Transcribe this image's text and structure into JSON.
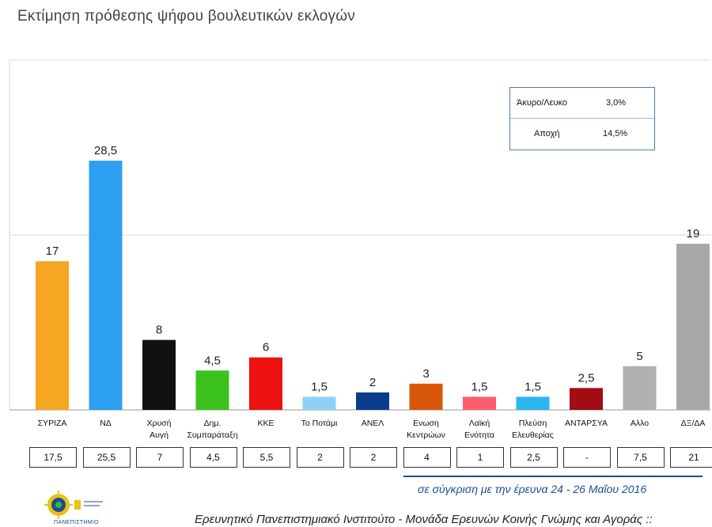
{
  "title": "Εκτίμηση πρόθεσης ψήφου βουλευτικών εκλογών",
  "legend": [
    {
      "label": "Άκυρο/Λευκο",
      "value": "3,0%"
    },
    {
      "label": "Αποχή",
      "value": "14,5%"
    }
  ],
  "chart_data": {
    "type": "bar",
    "categories": [
      [
        "ΣΥΡΙΖΑ"
      ],
      [
        "ΝΔ"
      ],
      [
        "Χρυσή",
        "Αυγή"
      ],
      [
        "Δημ.",
        "Συμπαράταξη"
      ],
      [
        "ΚΚΕ"
      ],
      [
        "Το Ποτάμι"
      ],
      [
        "ΑΝΕΛ"
      ],
      [
        "Ενωση",
        "Κεντρώων"
      ],
      [
        "Λαϊκή",
        "Ενότητα"
      ],
      [
        "Πλεύση",
        "Ελευθερίας"
      ],
      [
        "ΑΝΤΑΡΣΥΑ"
      ],
      [
        "Αλλο"
      ],
      [
        "ΔΞ/ΔΑ"
      ]
    ],
    "values": [
      17,
      28.5,
      8,
      4.5,
      6,
      1.5,
      2,
      3,
      1.5,
      1.5,
      2.5,
      5,
      19
    ],
    "value_labels": [
      "17",
      "28,5",
      "8",
      "4,5",
      "6",
      "1,5",
      "2",
      "3",
      "1,5",
      "1,5",
      "2,5",
      "5",
      "19"
    ],
    "colors": [
      "#f5a623",
      "#2d9ff0",
      "#111111",
      "#3cc21d",
      "#ee1111",
      "#8fd1f5",
      "#0b3c8c",
      "#d9560b",
      "#ff5c6e",
      "#2bb6f0",
      "#a10d12",
      "#b0b0b0",
      "#a8a8a8"
    ],
    "ylim": [
      0,
      40
    ],
    "gridlines": [
      20,
      40
    ],
    "comparison_label": "σε σύγκριση με την έρευνα 24 - 26 Μαΐου 2016",
    "comparison_values": [
      "17,5",
      "25,5",
      "7",
      "4,5",
      "5,5",
      "2",
      "2",
      "4",
      "1",
      "2,5",
      "-",
      "7,5",
      "21"
    ]
  },
  "footer": "Ερευνητικό Πανεπιστημιακό Ινστιτούτο - Μονάδα Ερευνών Κοινής Γνώμης και Αγοράς ::",
  "logo_text": "ΠΑΝΕΠΙΣΤΗΜΙΟ",
  "colors": {
    "accent": "#1e4d8c"
  }
}
